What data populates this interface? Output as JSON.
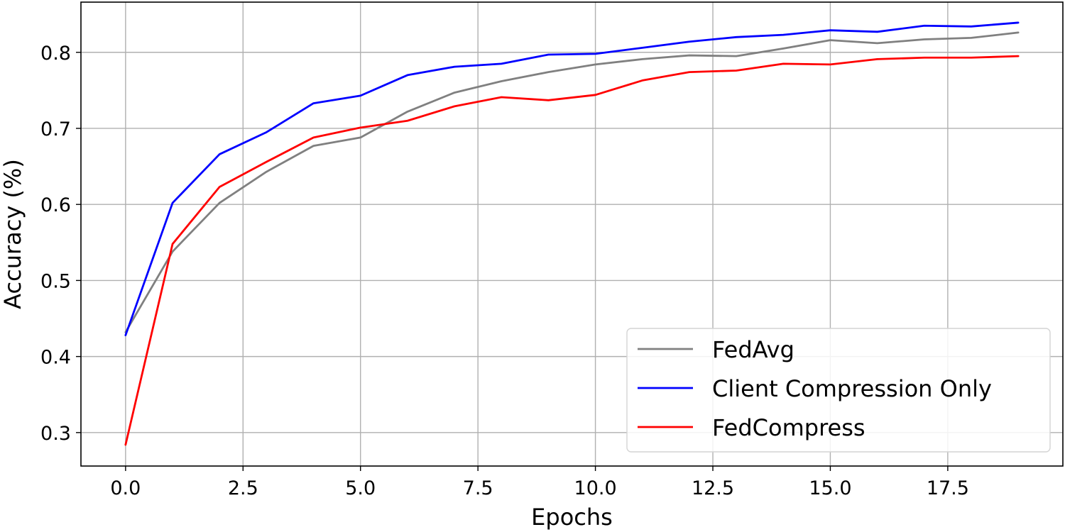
{
  "chart_data": {
    "type": "line",
    "title": "",
    "xlabel": "Epochs",
    "ylabel": "Accuracy (%)",
    "xlim": [
      -0.95,
      19.95
    ],
    "ylim": [
      0.256,
      0.866
    ],
    "grid": true,
    "legend_position": "bottom-right",
    "x_ticks": [
      0.0,
      2.5,
      5.0,
      7.5,
      10.0,
      12.5,
      15.0,
      17.5
    ],
    "x_tick_labels": [
      "0.0",
      "2.5",
      "5.0",
      "7.5",
      "10.0",
      "12.5",
      "15.0",
      "17.5"
    ],
    "y_ticks": [
      0.3,
      0.4,
      0.5,
      0.6,
      0.7,
      0.8
    ],
    "y_tick_labels": [
      "0.3",
      "0.4",
      "0.5",
      "0.6",
      "0.7",
      "0.8"
    ],
    "x": [
      0,
      1,
      2,
      3,
      4,
      5,
      6,
      7,
      8,
      9,
      10,
      11,
      12,
      13,
      14,
      15,
      16,
      17,
      18,
      19
    ],
    "series": [
      {
        "name": "FedAvg",
        "color": "#808080",
        "values": [
          0.432,
          0.538,
          0.602,
          0.643,
          0.677,
          0.688,
          0.722,
          0.747,
          0.762,
          0.774,
          0.784,
          0.791,
          0.796,
          0.795,
          0.805,
          0.816,
          0.812,
          0.817,
          0.819,
          0.826
        ]
      },
      {
        "name": "Client Compression Only",
        "color": "#0000ff",
        "values": [
          0.428,
          0.602,
          0.666,
          0.695,
          0.733,
          0.743,
          0.77,
          0.781,
          0.785,
          0.797,
          0.798,
          0.806,
          0.814,
          0.82,
          0.823,
          0.829,
          0.827,
          0.835,
          0.834,
          0.839
        ]
      },
      {
        "name": "FedCompress",
        "color": "#ff0000",
        "values": [
          0.284,
          0.548,
          0.623,
          0.656,
          0.688,
          0.701,
          0.71,
          0.729,
          0.741,
          0.737,
          0.744,
          0.763,
          0.774,
          0.776,
          0.785,
          0.784,
          0.791,
          0.793,
          0.793,
          0.795
        ]
      }
    ]
  }
}
